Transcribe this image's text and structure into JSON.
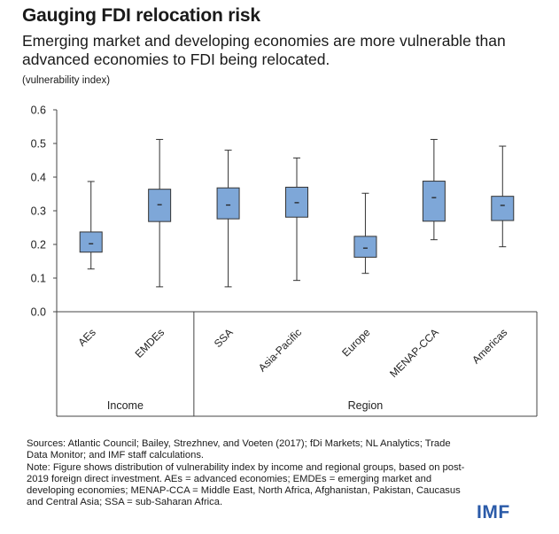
{
  "header": {
    "title": "Gauging FDI relocation risk",
    "subtitle": "Emerging market and developing economies are more vulnerable than advanced economies to FDI being relocated.",
    "unit": "(vulnerability index)"
  },
  "chart_data": {
    "type": "boxplot",
    "title": "Gauging FDI relocation risk",
    "ylabel": "(vulnerability index)",
    "ylim": [
      0,
      0.6
    ],
    "yticks": [
      "0.0",
      "0.1",
      "0.2",
      "0.3",
      "0.4",
      "0.5",
      "0.6"
    ],
    "ytick_values": [
      0,
      0.1,
      0.2,
      0.3,
      0.4,
      0.5,
      0.6
    ],
    "box_color": "#7ea7d8",
    "groups": [
      {
        "label": "Income",
        "categories": [
          "AEs",
          "EMDEs"
        ]
      },
      {
        "label": "Region",
        "categories": [
          "SSA",
          "Asia-Pacific",
          "Europe",
          "MENAP-CCA",
          "Americas"
        ]
      }
    ],
    "boxes": [
      {
        "category": "AEs",
        "min": 0.127,
        "q1": 0.177,
        "median": 0.202,
        "q3": 0.237,
        "max": 0.387
      },
      {
        "category": "EMDEs",
        "min": 0.074,
        "q1": 0.268,
        "median": 0.318,
        "q3": 0.364,
        "max": 0.512
      },
      {
        "category": "SSA",
        "min": 0.074,
        "q1": 0.276,
        "median": 0.317,
        "q3": 0.368,
        "max": 0.48
      },
      {
        "category": "Asia-Pacific",
        "min": 0.093,
        "q1": 0.281,
        "median": 0.324,
        "q3": 0.37,
        "max": 0.457
      },
      {
        "category": "Europe",
        "min": 0.114,
        "q1": 0.162,
        "median": 0.189,
        "q3": 0.224,
        "max": 0.352
      },
      {
        "category": "MENAP-CCA",
        "min": 0.214,
        "q1": 0.269,
        "median": 0.339,
        "q3": 0.388,
        "max": 0.512
      },
      {
        "category": "Americas",
        "min": 0.193,
        "q1": 0.271,
        "median": 0.316,
        "q3": 0.343,
        "max": 0.492
      }
    ]
  },
  "notes": {
    "sources": "Sources: Atlantic Council; Bailey, Strezhnev, and Voeten (2017); fDi Markets; NL Analytics; Trade Data Monitor; and IMF staff calculations.",
    "note": "Note: Figure shows distribution of vulnerability index by income and regional groups, based on post-2019 foreign direct investment. AEs = advanced economies; EMDEs = emerging market and developing economies; MENAP-CCA = Middle East, North Africa, Afghanistan, Pakistan, Caucasus and Central Asia; SSA = sub-Saharan Africa."
  },
  "logo": {
    "text": "IMF"
  }
}
